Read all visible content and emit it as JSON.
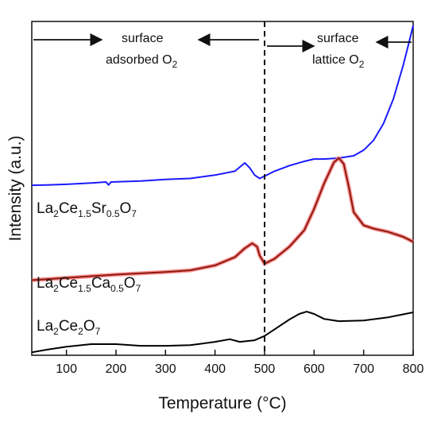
{
  "chart_data": {
    "type": "line",
    "xlabel_main": "Temperature (",
    "xlabel_unit": "°C",
    "xlabel_end": ")",
    "ylabel": "Intensity (a.u.)",
    "xlim": [
      30,
      800
    ],
    "ylim": [
      0,
      100
    ],
    "xticks": [
      100,
      200,
      300,
      400,
      500,
      600,
      700,
      800
    ],
    "divider_x": 500,
    "annotations": {
      "left_top": "surface",
      "left_bottom": "adsorbed O",
      "left_bottom_sub": "2",
      "right_top": "surface",
      "right_bottom": "lattice O",
      "right_bottom_sub": "2"
    },
    "series": [
      {
        "label": {
          "p1": "La",
          "s1": "2",
          "p2": "Ce",
          "s2": "1.5",
          "p3": "Sr",
          "s3": "0.5",
          "p4": "O",
          "s4": "7"
        },
        "color": "#1a1aff",
        "highlight": "",
        "x": [
          30,
          60,
          100,
          150,
          180,
          185,
          190,
          250,
          300,
          350,
          400,
          440,
          460,
          470,
          480,
          490,
          500,
          520,
          550,
          580,
          600,
          620,
          650,
          680,
          700,
          720,
          740,
          760,
          780,
          790,
          800
        ],
        "y": [
          51.3,
          51.4,
          51.6,
          52.0,
          52.3,
          51.4,
          52.3,
          52.6,
          53.1,
          53.4,
          54.4,
          55.6,
          58.1,
          56.6,
          54.4,
          53.4,
          54.1,
          55.6,
          57.3,
          58.6,
          59.3,
          59.3,
          59.6,
          60.3,
          62.0,
          65.0,
          70.1,
          77.6,
          87.9,
          93.9,
          100.0
        ]
      },
      {
        "label": {
          "p1": "La",
          "s1": "2",
          "p2": "Ce",
          "s2": "1.5",
          "p3": "Ca",
          "s3": "0.5",
          "p4": "O",
          "s4": "7"
        },
        "color": "#8a1a10",
        "highlight": "#ff6f6f",
        "x": [
          30,
          100,
          200,
          300,
          350,
          400,
          440,
          460,
          475,
          485,
          490,
          500,
          520,
          550,
          580,
          600,
          620,
          640,
          650,
          660,
          670,
          680,
          700,
          720,
          750,
          780,
          800
        ],
        "y": [
          22.4,
          23.1,
          24.1,
          24.9,
          25.4,
          26.9,
          29.4,
          32.1,
          33.6,
          32.6,
          29.9,
          27.4,
          28.9,
          32.6,
          37.6,
          44.1,
          51.8,
          58.3,
          59.6,
          57.8,
          50.8,
          43.1,
          39.1,
          38.1,
          37.1,
          35.6,
          34.1
        ]
      },
      {
        "label": {
          "p1": "La",
          "s1": "2",
          "p2": "Ce",
          "s2": "2",
          "p3": "O",
          "s3": "7",
          "p4": "",
          "s4": ""
        },
        "color": "#000000",
        "highlight": "",
        "x": [
          30,
          60,
          100,
          150,
          200,
          250,
          300,
          350,
          400,
          430,
          450,
          480,
          500,
          520,
          550,
          570,
          585,
          600,
          620,
          650,
          700,
          750,
          800
        ],
        "y": [
          0.4,
          1.2,
          2.1,
          2.9,
          2.9,
          2.4,
          2.4,
          2.6,
          3.6,
          4.4,
          3.6,
          4.1,
          5.4,
          7.4,
          10.4,
          12.1,
          12.8,
          12.1,
          10.6,
          9.9,
          10.1,
          11.1,
          12.6
        ]
      }
    ]
  }
}
